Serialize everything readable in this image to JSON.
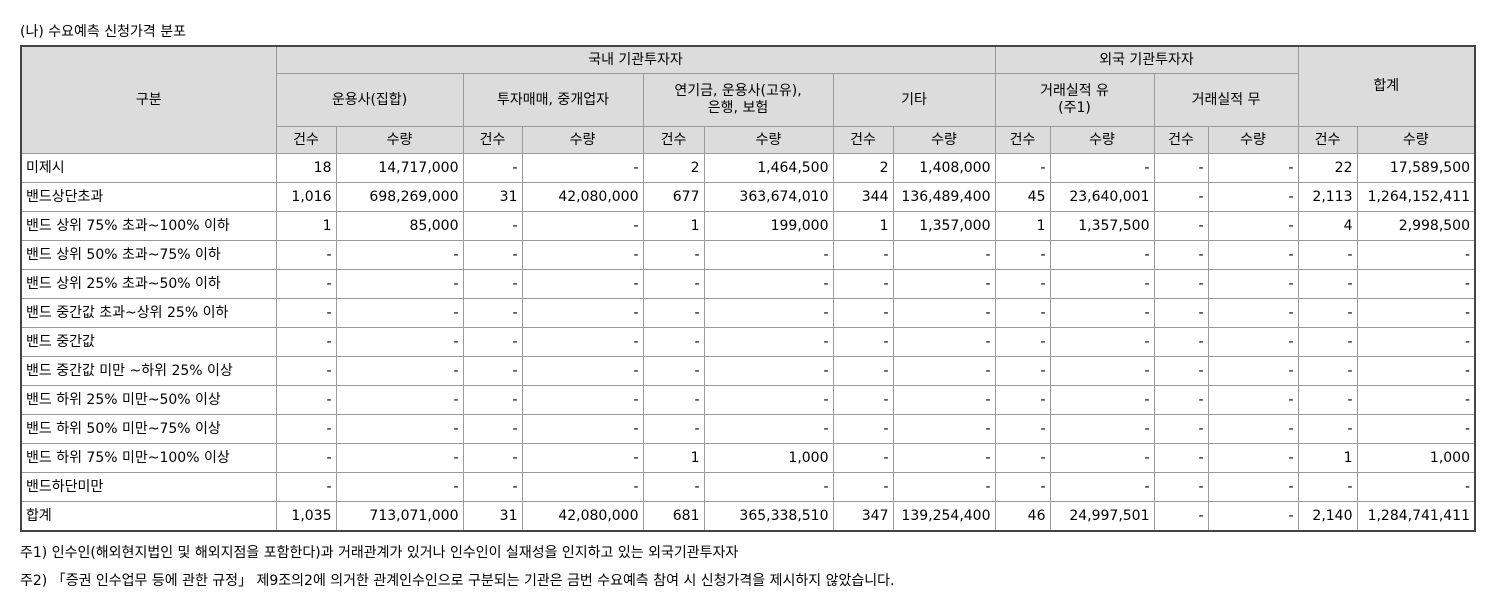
{
  "title": "(나) 수요예측 신청가격 분포",
  "header": {
    "category": "구분",
    "domestic": "국내 기관투자자",
    "foreign": "외국 기관투자자",
    "total": "합계",
    "groups": [
      "운용사(집합)",
      "투자매매, 중개업자",
      "연기금, 운용사(고유),\n은행, 보험",
      "기타",
      "거래실적 유\n(주1)",
      "거래실적 무"
    ],
    "count": "건수",
    "qty": "수량"
  },
  "rows": [
    {
      "label": "미제시",
      "cells": [
        "18",
        "14,717,000",
        "-",
        "-",
        "2",
        "1,464,500",
        "2",
        "1,408,000",
        "-",
        "-",
        "-",
        "-",
        "22",
        "17,589,500"
      ]
    },
    {
      "label": "밴드상단초과",
      "cells": [
        "1,016",
        "698,269,000",
        "31",
        "42,080,000",
        "677",
        "363,674,010",
        "344",
        "136,489,400",
        "45",
        "23,640,001",
        "-",
        "-",
        "2,113",
        "1,264,152,411"
      ]
    },
    {
      "label": "밴드 상위 75% 초과~100% 이하",
      "cells": [
        "1",
        "85,000",
        "-",
        "-",
        "1",
        "199,000",
        "1",
        "1,357,000",
        "1",
        "1,357,500",
        "-",
        "-",
        "4",
        "2,998,500"
      ]
    },
    {
      "label": "밴드 상위 50% 초과~75% 이하",
      "cells": [
        "-",
        "-",
        "-",
        "-",
        "-",
        "-",
        "-",
        "-",
        "-",
        "-",
        "-",
        "-",
        "-",
        "-"
      ]
    },
    {
      "label": "밴드 상위 25% 초과~50% 이하",
      "cells": [
        "-",
        "-",
        "-",
        "-",
        "-",
        "-",
        "-",
        "-",
        "-",
        "-",
        "-",
        "-",
        "-",
        "-"
      ]
    },
    {
      "label": "밴드 중간값 초과~상위 25% 이하",
      "cells": [
        "-",
        "-",
        "-",
        "-",
        "-",
        "-",
        "-",
        "-",
        "-",
        "-",
        "-",
        "-",
        "-",
        "-"
      ]
    },
    {
      "label": "밴드 중간값",
      "cells": [
        "-",
        "-",
        "-",
        "-",
        "-",
        "-",
        "-",
        "-",
        "-",
        "-",
        "-",
        "-",
        "-",
        "-"
      ]
    },
    {
      "label": "밴드 중간값 미만 ~하위 25% 이상",
      "cells": [
        "-",
        "-",
        "-",
        "-",
        "-",
        "-",
        "-",
        "-",
        "-",
        "-",
        "-",
        "-",
        "-",
        "-"
      ]
    },
    {
      "label": "밴드 하위 25% 미만~50% 이상",
      "cells": [
        "-",
        "-",
        "-",
        "-",
        "-",
        "-",
        "-",
        "-",
        "-",
        "-",
        "-",
        "-",
        "-",
        "-"
      ]
    },
    {
      "label": "밴드 하위 50% 미만~75% 이상",
      "cells": [
        "-",
        "-",
        "-",
        "-",
        "-",
        "-",
        "-",
        "-",
        "-",
        "-",
        "-",
        "-",
        "-",
        "-"
      ]
    },
    {
      "label": "밴드 하위 75% 미만~100% 이상",
      "cells": [
        "-",
        "-",
        "-",
        "-",
        "1",
        "1,000",
        "-",
        "-",
        "-",
        "-",
        "-",
        "-",
        "1",
        "1,000"
      ]
    },
    {
      "label": "밴드하단미만",
      "cells": [
        "-",
        "-",
        "-",
        "-",
        "-",
        "-",
        "-",
        "-",
        "-",
        "-",
        "-",
        "-",
        "-",
        "-"
      ]
    },
    {
      "label": "합계",
      "cells": [
        "1,035",
        "713,071,000",
        "31",
        "42,080,000",
        "681",
        "365,338,510",
        "347",
        "139,254,400",
        "46",
        "24,997,501",
        "-",
        "-",
        "2,140",
        "1,284,741,411"
      ]
    }
  ],
  "notes": [
    "주1) 인수인(해외현지법인 및 해외지점을 포함한다)과 거래관계가 있거나 인수인이 실재성을 인지하고 있는 외국기관투자자",
    "주2) 「증권 인수업무 등에 관한 규정」 제9조의2에 의거한 관계인수인으로 구분되는 기관은 금번 수요예측 참여 시 신청가격을 제시하지 않았습니다."
  ]
}
